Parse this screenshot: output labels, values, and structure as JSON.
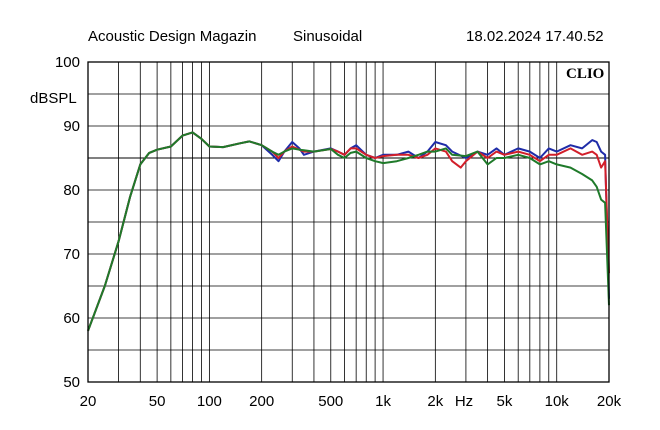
{
  "header": {
    "left": "Acoustic Design Magazin",
    "middle": "Sinusoidal",
    "right": "18.02.2024 17.40.52"
  },
  "brand": "CLIO",
  "chart_data": {
    "type": "line",
    "xscale": "log",
    "xlim": [
      20,
      20000
    ],
    "ylim": [
      50,
      100
    ],
    "ylabel": "dBSPL",
    "xlabel": "Hz",
    "grid": true,
    "y_ticks": [
      50,
      60,
      70,
      80,
      90,
      100
    ],
    "x_ticks": [
      {
        "value": 20,
        "label": "20"
      },
      {
        "value": 50,
        "label": "50"
      },
      {
        "value": 100,
        "label": "100"
      },
      {
        "value": 200,
        "label": "200"
      },
      {
        "value": 500,
        "label": "500"
      },
      {
        "value": 1000,
        "label": "1k"
      },
      {
        "value": 2000,
        "label": "2k"
      },
      {
        "value": 5000,
        "label": "5k"
      },
      {
        "value": 10000,
        "label": "10k"
      },
      {
        "value": 20000,
        "label": "20k"
      }
    ],
    "reference_line": 85,
    "colors": {
      "blue": "#1f2ca8",
      "red": "#d21f2a",
      "green": "#1f7a2a",
      "reference": "#000000"
    },
    "series": [
      {
        "color": "#1f2ca8",
        "points": [
          [
            20,
            58
          ],
          [
            25,
            65
          ],
          [
            30,
            72
          ],
          [
            35,
            79
          ],
          [
            40,
            84
          ],
          [
            45,
            85.8
          ],
          [
            50,
            86.3
          ],
          [
            60,
            86.8
          ],
          [
            70,
            88.5
          ],
          [
            80,
            89
          ],
          [
            90,
            88
          ],
          [
            100,
            86.8
          ],
          [
            120,
            86.7
          ],
          [
            150,
            87.3
          ],
          [
            170,
            87.6
          ],
          [
            200,
            87
          ],
          [
            230,
            85.5
          ],
          [
            250,
            84.5
          ],
          [
            270,
            86
          ],
          [
            300,
            87.5
          ],
          [
            330,
            86.5
          ],
          [
            350,
            85.5
          ],
          [
            400,
            86
          ],
          [
            500,
            86.5
          ],
          [
            550,
            86
          ],
          [
            600,
            85.5
          ],
          [
            650,
            86.5
          ],
          [
            700,
            87
          ],
          [
            800,
            85.5
          ],
          [
            900,
            85
          ],
          [
            1000,
            85.5
          ],
          [
            1200,
            85.5
          ],
          [
            1400,
            86
          ],
          [
            1600,
            85
          ],
          [
            1800,
            86
          ],
          [
            2000,
            87.5
          ],
          [
            2300,
            87
          ],
          [
            2500,
            86
          ],
          [
            3000,
            85
          ],
          [
            3500,
            86
          ],
          [
            4000,
            85.5
          ],
          [
            4500,
            86.5
          ],
          [
            5000,
            85.5
          ],
          [
            6000,
            86.5
          ],
          [
            7000,
            86
          ],
          [
            8000,
            85
          ],
          [
            9000,
            86.5
          ],
          [
            10000,
            86
          ],
          [
            12000,
            87
          ],
          [
            14000,
            86.5
          ],
          [
            16000,
            87.8
          ],
          [
            17000,
            87.5
          ],
          [
            18000,
            86
          ],
          [
            19000,
            85.5
          ],
          [
            20000,
            63
          ]
        ]
      },
      {
        "color": "#d21f2a",
        "points": [
          [
            20,
            58
          ],
          [
            25,
            65
          ],
          [
            30,
            72
          ],
          [
            35,
            79
          ],
          [
            40,
            84
          ],
          [
            45,
            85.8
          ],
          [
            50,
            86.3
          ],
          [
            60,
            86.8
          ],
          [
            70,
            88.5
          ],
          [
            80,
            89
          ],
          [
            90,
            88
          ],
          [
            100,
            86.8
          ],
          [
            120,
            86.7
          ],
          [
            150,
            87.3
          ],
          [
            170,
            87.6
          ],
          [
            200,
            87
          ],
          [
            230,
            86
          ],
          [
            250,
            85
          ],
          [
            270,
            86
          ],
          [
            300,
            86.8
          ],
          [
            330,
            86.3
          ],
          [
            350,
            86
          ],
          [
            400,
            86
          ],
          [
            500,
            86.4
          ],
          [
            550,
            86
          ],
          [
            600,
            85.5
          ],
          [
            650,
            86.5
          ],
          [
            700,
            86.5
          ],
          [
            800,
            85.5
          ],
          [
            900,
            85
          ],
          [
            1000,
            85.3
          ],
          [
            1200,
            85.5
          ],
          [
            1400,
            85.5
          ],
          [
            1600,
            85
          ],
          [
            1800,
            85.5
          ],
          [
            2000,
            86.5
          ],
          [
            2300,
            86
          ],
          [
            2500,
            84.5
          ],
          [
            2800,
            83.5
          ],
          [
            3000,
            84.5
          ],
          [
            3500,
            86
          ],
          [
            4000,
            85
          ],
          [
            4500,
            86
          ],
          [
            5000,
            85.5
          ],
          [
            6000,
            86
          ],
          [
            7000,
            85.5
          ],
          [
            8000,
            84.5
          ],
          [
            9000,
            85.5
          ],
          [
            10000,
            85.5
          ],
          [
            12000,
            86.5
          ],
          [
            14000,
            85.5
          ],
          [
            16000,
            86
          ],
          [
            17000,
            85.5
          ],
          [
            18000,
            83.5
          ],
          [
            19000,
            84.5
          ],
          [
            20000,
            67
          ]
        ]
      },
      {
        "color": "#1f7a2a",
        "points": [
          [
            20,
            58
          ],
          [
            25,
            65
          ],
          [
            30,
            72
          ],
          [
            35,
            79
          ],
          [
            40,
            84
          ],
          [
            45,
            85.8
          ],
          [
            50,
            86.3
          ],
          [
            60,
            86.8
          ],
          [
            70,
            88.5
          ],
          [
            80,
            89
          ],
          [
            90,
            88
          ],
          [
            100,
            86.8
          ],
          [
            120,
            86.7
          ],
          [
            150,
            87.3
          ],
          [
            170,
            87.6
          ],
          [
            200,
            87
          ],
          [
            230,
            86
          ],
          [
            250,
            85.5
          ],
          [
            270,
            86
          ],
          [
            300,
            86.5
          ],
          [
            330,
            86.3
          ],
          [
            350,
            86.2
          ],
          [
            400,
            86
          ],
          [
            500,
            86.4
          ],
          [
            550,
            85.5
          ],
          [
            600,
            85
          ],
          [
            650,
            85.8
          ],
          [
            700,
            86
          ],
          [
            800,
            85
          ],
          [
            900,
            84.5
          ],
          [
            1000,
            84.2
          ],
          [
            1200,
            84.5
          ],
          [
            1400,
            85
          ],
          [
            1600,
            85.5
          ],
          [
            1800,
            86
          ],
          [
            2000,
            86
          ],
          [
            2300,
            86.5
          ],
          [
            2500,
            85.5
          ],
          [
            3000,
            85.3
          ],
          [
            3500,
            86
          ],
          [
            4000,
            84
          ],
          [
            4500,
            85
          ],
          [
            5000,
            85
          ],
          [
            6000,
            85.5
          ],
          [
            7000,
            85
          ],
          [
            8000,
            84
          ],
          [
            9000,
            84.5
          ],
          [
            10000,
            84
          ],
          [
            12000,
            83.5
          ],
          [
            14000,
            82.5
          ],
          [
            16000,
            81.5
          ],
          [
            17000,
            80.5
          ],
          [
            18000,
            78.5
          ],
          [
            19000,
            78
          ],
          [
            20000,
            62
          ]
        ]
      }
    ]
  }
}
